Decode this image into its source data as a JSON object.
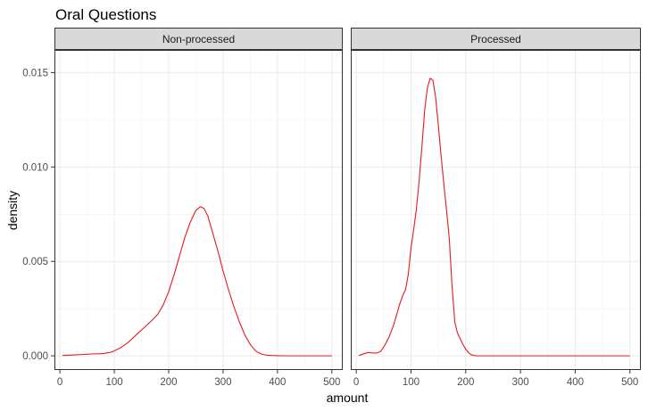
{
  "chart_data": {
    "type": "line",
    "title": "Oral Questions",
    "xlabel": "amount",
    "ylabel": "density",
    "xlim": [
      -10,
      520
    ],
    "ylim": [
      -0.00075,
      0.0162
    ],
    "x_ticks": [
      0,
      100,
      200,
      300,
      400,
      500
    ],
    "x_tick_labels": [
      "0",
      "100",
      "200",
      "300",
      "400",
      "500"
    ],
    "y_ticks": [
      0,
      0.005,
      0.01,
      0.015
    ],
    "y_tick_labels": [
      "0.000",
      "0.005",
      "0.010",
      "0.015"
    ],
    "grid": true,
    "line_color": "#e41a1c",
    "panel_strip_color": "#d9d9d9",
    "panels": [
      {
        "label": "Non-processed",
        "x": [
          5,
          20,
          40,
          60,
          80,
          95,
          110,
          125,
          140,
          155,
          170,
          180,
          190,
          200,
          210,
          220,
          230,
          240,
          250,
          258,
          265,
          272,
          280,
          290,
          300,
          310,
          320,
          330,
          340,
          350,
          360,
          370,
          380,
          390,
          400,
          410,
          420,
          440,
          460,
          480,
          500
        ],
        "y": [
          2e-05,
          4e-05,
          7e-05,
          0.0001,
          0.00012,
          0.0002,
          0.0004,
          0.0007,
          0.0011,
          0.0015,
          0.0019,
          0.0022,
          0.0027,
          0.0034,
          0.0043,
          0.0053,
          0.0063,
          0.0071,
          0.0077,
          0.0079,
          0.0078,
          0.0074,
          0.0066,
          0.0056,
          0.0045,
          0.0035,
          0.0026,
          0.0018,
          0.0011,
          0.0006,
          0.00025,
          0.0001,
          4e-05,
          2e-05,
          1e-05,
          5e-06,
          0,
          0,
          0,
          0,
          0
        ]
      },
      {
        "label": "Processed",
        "x": [
          5,
          15,
          22,
          30,
          38,
          45,
          52,
          60,
          68,
          75,
          80,
          85,
          90,
          95,
          100,
          105,
          110,
          115,
          120,
          125,
          130,
          135,
          140,
          145,
          150,
          155,
          160,
          165,
          170,
          175,
          180,
          185,
          190,
          195,
          200,
          205,
          210,
          215,
          220,
          240,
          280,
          350,
          420,
          500
        ],
        "y": [
          2e-05,
          0.00012,
          0.00018,
          0.00015,
          0.00015,
          0.00025,
          0.00055,
          0.001,
          0.0016,
          0.0023,
          0.0028,
          0.0032,
          0.0035,
          0.0043,
          0.0057,
          0.0067,
          0.0078,
          0.0093,
          0.0111,
          0.013,
          0.0142,
          0.0147,
          0.0146,
          0.0137,
          0.0122,
          0.0106,
          0.0091,
          0.0077,
          0.0062,
          0.0037,
          0.0018,
          0.0012,
          0.0009,
          0.0006,
          0.00035,
          0.00017,
          6e-05,
          2e-05,
          0,
          0,
          0,
          0,
          0,
          0
        ]
      }
    ]
  }
}
